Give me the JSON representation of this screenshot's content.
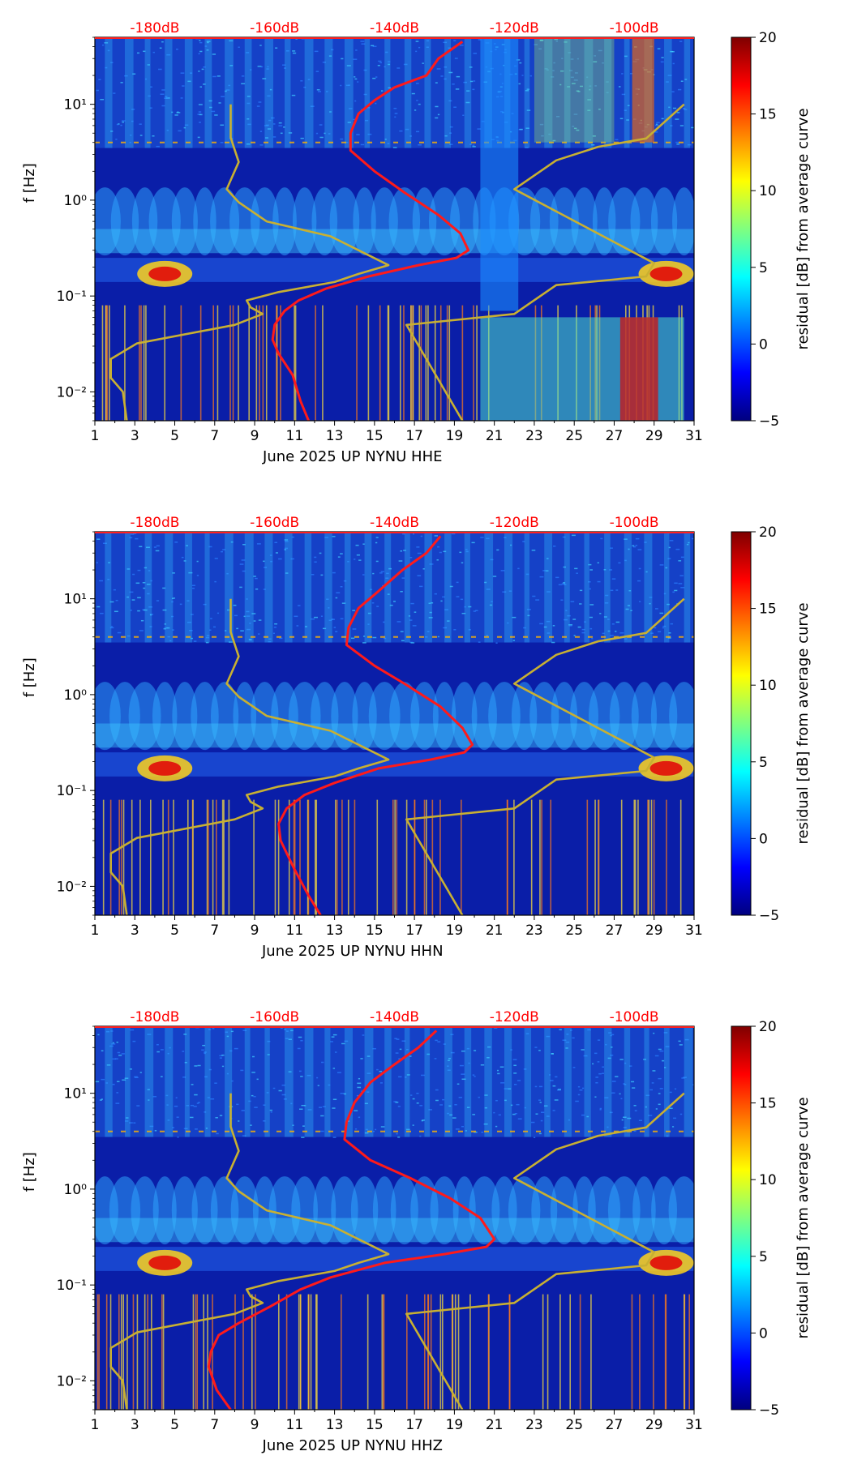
{
  "chart_data": [
    {
      "type": "heatmap",
      "title": "",
      "xlabel": "June 2025 UP NYNU  HHE",
      "ylabel": "f [Hz]",
      "x_range": [
        1,
        31
      ],
      "x_ticks": [
        "1",
        "3",
        "5",
        "7",
        "9",
        "11",
        "13",
        "15",
        "17",
        "19",
        "21",
        "23",
        "25",
        "27",
        "29",
        "31"
      ],
      "y_range_hz": [
        0.005,
        50
      ],
      "y_ticks": [
        {
          "value": 0.01,
          "label": "10⁻²"
        },
        {
          "value": 0.1,
          "label": "10⁻¹"
        },
        {
          "value": 1,
          "label": "10⁰"
        },
        {
          "value": 10,
          "label": "10¹"
        }
      ],
      "top_labels": [
        {
          "day": 4,
          "label": "-180dB"
        },
        {
          "day": 10,
          "label": "-160dB"
        },
        {
          "day": 16,
          "label": "-140dB"
        },
        {
          "day": 22,
          "label": "-120dB"
        },
        {
          "day": 28,
          "label": "-100dB"
        }
      ],
      "colorbar": {
        "label": "residual [dB] from average curve",
        "min": -5,
        "max": 20,
        "ticks": [
          "−5",
          "0",
          "5",
          "10",
          "15",
          "20"
        ]
      },
      "series": [
        {
          "name": "median PSD (red)",
          "x": [
            19.4,
            18.2,
            17.6,
            16.0,
            15.0,
            14.2,
            13.8,
            13.8,
            15.0,
            16.5,
            18.2,
            19.3,
            19.7,
            19.1,
            17.2,
            14.7,
            12.6,
            11.2,
            10.5,
            10.0,
            9.9,
            10.2,
            10.9,
            11.3,
            11.7
          ],
          "f": [
            45,
            30,
            20,
            15,
            11,
            8,
            5,
            3.3,
            2.0,
            1.2,
            0.7,
            0.45,
            0.3,
            0.25,
            0.21,
            0.16,
            0.12,
            0.09,
            0.07,
            0.05,
            0.035,
            0.025,
            0.015,
            0.008,
            0.005
          ]
        },
        {
          "name": "noise model (olive)",
          "x": [
            7.8,
            7.8,
            8.2,
            7.6,
            8.2,
            9.6,
            12.8,
            15.7,
            14.2,
            13.0,
            10.2,
            8.6,
            8.8,
            9.4,
            8.0,
            3.1,
            1.8,
            1.8,
            2.4,
            2.6,
            22.0,
            24.1,
            26.2,
            28.6,
            30.5
          ],
          "f": [
            10,
            4.5,
            2.5,
            1.3,
            0.95,
            0.6,
            0.42,
            0.21,
            0.17,
            0.14,
            0.11,
            0.09,
            0.076,
            0.065,
            0.05,
            0.032,
            0.022,
            0.014,
            0.01,
            0.005,
            1.3,
            2.6,
            3.6,
            4.4,
            10
          ]
        }
      ]
    },
    {
      "type": "heatmap",
      "title": "",
      "xlabel": "June 2025 UP NYNU  HHN",
      "ylabel": "f [Hz]",
      "x_range": [
        1,
        31
      ],
      "x_ticks": [
        "1",
        "3",
        "5",
        "7",
        "9",
        "11",
        "13",
        "15",
        "17",
        "19",
        "21",
        "23",
        "25",
        "27",
        "29",
        "31"
      ],
      "y_range_hz": [
        0.005,
        50
      ],
      "y_ticks": [
        {
          "value": 0.01,
          "label": "10⁻²"
        },
        {
          "value": 0.1,
          "label": "10⁻¹"
        },
        {
          "value": 1,
          "label": "10⁰"
        },
        {
          "value": 10,
          "label": "10¹"
        }
      ],
      "top_labels": [
        {
          "day": 4,
          "label": "-180dB"
        },
        {
          "day": 10,
          "label": "-160dB"
        },
        {
          "day": 16,
          "label": "-140dB"
        },
        {
          "day": 22,
          "label": "-120dB"
        },
        {
          "day": 28,
          "label": "-100dB"
        }
      ],
      "colorbar": {
        "label": "residual [dB] from average curve",
        "min": -5,
        "max": 20,
        "ticks": [
          "−5",
          "0",
          "5",
          "10",
          "15",
          "20"
        ]
      },
      "series": [
        {
          "name": "median PSD (red)",
          "x": [
            18.3,
            17.6,
            16.4,
            15.2,
            14.2,
            13.7,
            13.6,
            15.0,
            16.5,
            18.3,
            19.4,
            19.9,
            19.5,
            17.8,
            15.2,
            13.0,
            11.5,
            10.6,
            10.2,
            10.3,
            11.0,
            11.7,
            12.3
          ],
          "f": [
            45,
            30,
            20,
            12,
            8,
            5,
            3.3,
            2.0,
            1.3,
            0.75,
            0.45,
            0.3,
            0.25,
            0.21,
            0.17,
            0.12,
            0.09,
            0.065,
            0.045,
            0.03,
            0.015,
            0.008,
            0.005
          ]
        },
        {
          "name": "noise model (olive)",
          "x": [
            7.8,
            7.8,
            8.2,
            7.6,
            8.2,
            9.6,
            12.8,
            15.7,
            14.2,
            13.0,
            10.2,
            8.6,
            8.8,
            9.4,
            8.0,
            3.1,
            1.8,
            1.8,
            2.4,
            2.6,
            22.0,
            24.1,
            26.2,
            28.6,
            30.5
          ],
          "f": [
            10,
            4.5,
            2.5,
            1.3,
            0.95,
            0.6,
            0.42,
            0.21,
            0.17,
            0.14,
            0.11,
            0.09,
            0.076,
            0.065,
            0.05,
            0.032,
            0.022,
            0.014,
            0.01,
            0.005,
            1.3,
            2.6,
            3.6,
            4.4,
            10
          ]
        }
      ]
    },
    {
      "type": "heatmap",
      "title": "",
      "xlabel": "June 2025 UP NYNU  HHZ",
      "ylabel": "f [Hz]",
      "x_range": [
        1,
        31
      ],
      "x_ticks": [
        "1",
        "3",
        "5",
        "7",
        "9",
        "11",
        "13",
        "15",
        "17",
        "19",
        "21",
        "23",
        "25",
        "27",
        "29",
        "31"
      ],
      "y_range_hz": [
        0.005,
        50
      ],
      "y_ticks": [
        {
          "value": 0.01,
          "label": "10⁻²"
        },
        {
          "value": 0.1,
          "label": "10⁻¹"
        },
        {
          "value": 1,
          "label": "10⁰"
        },
        {
          "value": 10,
          "label": "10¹"
        }
      ],
      "top_labels": [
        {
          "day": 4,
          "label": "-180dB"
        },
        {
          "day": 10,
          "label": "-160dB"
        },
        {
          "day": 16,
          "label": "-140dB"
        },
        {
          "day": 22,
          "label": "-120dB"
        },
        {
          "day": 28,
          "label": "-100dB"
        }
      ],
      "colorbar": {
        "label": "residual [dB] from average curve",
        "min": -5,
        "max": 20,
        "ticks": [
          "−5",
          "0",
          "5",
          "10",
          "15",
          "20"
        ]
      },
      "series": [
        {
          "name": "median PSD (red)",
          "x": [
            18.1,
            17.2,
            16.0,
            14.8,
            14.0,
            13.6,
            13.5,
            14.8,
            16.8,
            18.8,
            20.3,
            21.0,
            20.6,
            18.5,
            15.5,
            12.8,
            11.3,
            9.8,
            8.2,
            7.2,
            6.8,
            6.7,
            7.1,
            7.8
          ],
          "f": [
            45,
            30,
            20,
            13,
            8,
            5,
            3.3,
            2.0,
            1.3,
            0.8,
            0.5,
            0.3,
            0.25,
            0.21,
            0.17,
            0.12,
            0.09,
            0.06,
            0.04,
            0.03,
            0.02,
            0.014,
            0.008,
            0.005
          ]
        },
        {
          "name": "noise model (olive)",
          "x": [
            7.8,
            7.8,
            8.2,
            7.6,
            8.2,
            9.6,
            12.8,
            15.7,
            14.2,
            13.0,
            10.2,
            8.6,
            8.8,
            9.4,
            8.0,
            3.1,
            1.8,
            1.8,
            2.4,
            2.6,
            22.0,
            24.1,
            26.2,
            28.6,
            30.5
          ],
          "f": [
            10,
            4.5,
            2.5,
            1.3,
            0.95,
            0.6,
            0.42,
            0.21,
            0.17,
            0.14,
            0.11,
            0.09,
            0.076,
            0.065,
            0.05,
            0.032,
            0.022,
            0.014,
            0.01,
            0.005,
            1.3,
            2.6,
            3.6,
            4.4,
            10
          ]
        }
      ]
    }
  ],
  "colors": {
    "median_curve": "#ff1a1a",
    "noise_model": "#c8b032",
    "db_label": "#ff0000"
  }
}
